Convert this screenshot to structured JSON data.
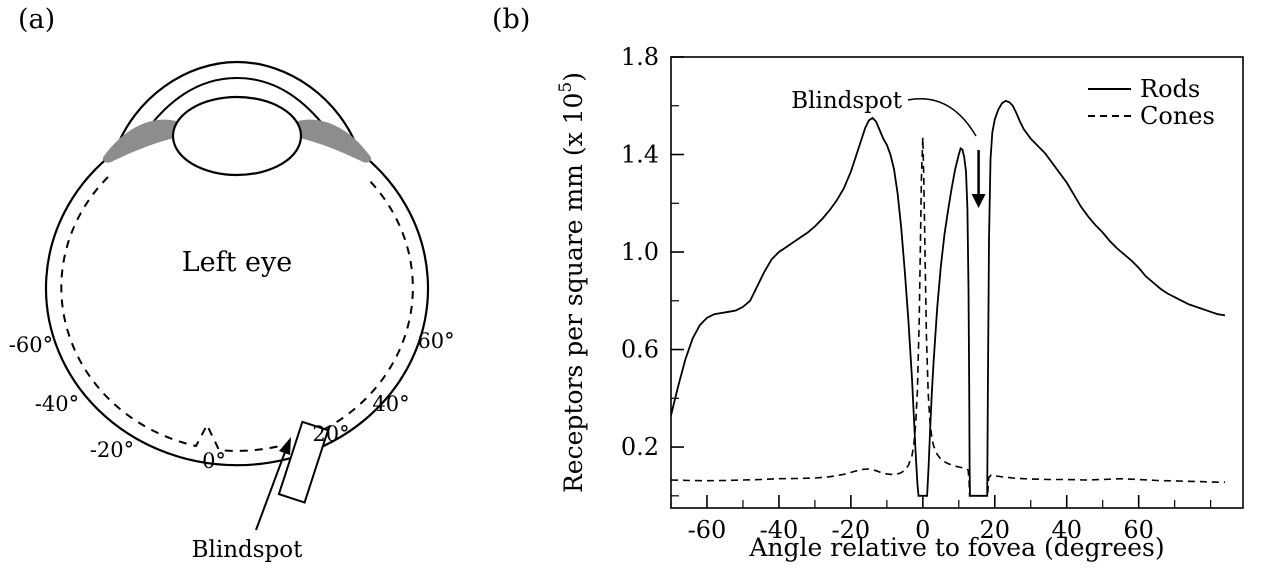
{
  "figure": {
    "panel_a": {
      "tag": "(a)",
      "eye_label": "Left eye",
      "blindspot_label": "Blindspot",
      "angle_labels": [
        "-60°",
        "-40°",
        "-20°",
        "0°",
        "20°",
        "40°",
        "60°"
      ]
    },
    "panel_b": {
      "tag": "(b)"
    }
  },
  "chart_data": {
    "type": "line",
    "title": "",
    "xlabel": "Angle relative to fovea (degrees)",
    "ylabel": "Receptors per square mm",
    "ylabel_unit": {
      "prefix": "(x 10",
      "sup": "5",
      "suffix": ")"
    },
    "xlim": [
      -70,
      89
    ],
    "ylim": [
      -0.05,
      1.8
    ],
    "grid": false,
    "legend_position": "top-right",
    "x_ticks": {
      "major": [
        -60,
        -40,
        -20,
        0,
        20,
        40,
        60
      ],
      "labels": [
        "-60",
        "-40",
        "-20",
        "0",
        "20",
        "40",
        "60"
      ],
      "minor": [
        -70,
        -50,
        -30,
        -10,
        10,
        30,
        50,
        70,
        80
      ]
    },
    "y_ticks": {
      "major": [
        0.2,
        0.6,
        1.0,
        1.4,
        1.8
      ],
      "labels": [
        "0.2",
        "0.6",
        "1.0",
        "1.4",
        "1.8"
      ],
      "minor": [
        0,
        0.4,
        0.8,
        1.2,
        1.6
      ]
    },
    "annotation": {
      "label": "Blindspot",
      "arrow_x": 15.5
    },
    "series": [
      {
        "name": "Rods",
        "style": "solid",
        "points": [
          [
            -70,
            0.33
          ],
          [
            -68,
            0.45
          ],
          [
            -66,
            0.56
          ],
          [
            -64,
            0.645
          ],
          [
            -62,
            0.7
          ],
          [
            -60,
            0.73
          ],
          [
            -58,
            0.745
          ],
          [
            -56,
            0.75
          ],
          [
            -54,
            0.755
          ],
          [
            -52,
            0.76
          ],
          [
            -50,
            0.775
          ],
          [
            -48,
            0.8
          ],
          [
            -46,
            0.86
          ],
          [
            -44,
            0.92
          ],
          [
            -42,
            0.97
          ],
          [
            -40,
            1.0
          ],
          [
            -38,
            1.02
          ],
          [
            -36,
            1.04
          ],
          [
            -34,
            1.06
          ],
          [
            -32,
            1.08
          ],
          [
            -30,
            1.105
          ],
          [
            -28,
            1.135
          ],
          [
            -26,
            1.17
          ],
          [
            -24,
            1.21
          ],
          [
            -22,
            1.26
          ],
          [
            -20,
            1.33
          ],
          [
            -18,
            1.42
          ],
          [
            -16,
            1.51
          ],
          [
            -15,
            1.54
          ],
          [
            -14,
            1.55
          ],
          [
            -13,
            1.535
          ],
          [
            -12,
            1.5
          ],
          [
            -11,
            1.465
          ],
          [
            -10,
            1.44
          ],
          [
            -9,
            1.4
          ],
          [
            -8,
            1.34
          ],
          [
            -7,
            1.24
          ],
          [
            -6,
            1.1
          ],
          [
            -5,
            0.92
          ],
          [
            -4,
            0.72
          ],
          [
            -3,
            0.48
          ],
          [
            -2.5,
            0.33
          ],
          [
            -2,
            0.18
          ],
          [
            -1.5,
            0.05
          ],
          [
            -1.2,
            0
          ],
          [
            1.2,
            0
          ],
          [
            1.6,
            0.12
          ],
          [
            2,
            0.26
          ],
          [
            2.5,
            0.42
          ],
          [
            3,
            0.55
          ],
          [
            4,
            0.77
          ],
          [
            5,
            0.94
          ],
          [
            6,
            1.07
          ],
          [
            7,
            1.17
          ],
          [
            8,
            1.26
          ],
          [
            9,
            1.34
          ],
          [
            10,
            1.4
          ],
          [
            10.5,
            1.425
          ],
          [
            11,
            1.42
          ],
          [
            11.5,
            1.39
          ],
          [
            12,
            1.33
          ],
          [
            12.4,
            1.18
          ],
          [
            12.7,
            0.85
          ],
          [
            12.9,
            0.45
          ],
          [
            13,
            0.12
          ],
          [
            13.1,
            0
          ],
          [
            17.9,
            0
          ],
          [
            18.1,
            0.45
          ],
          [
            18.4,
            1.05
          ],
          [
            18.8,
            1.38
          ],
          [
            19.3,
            1.49
          ],
          [
            20,
            1.545
          ],
          [
            21,
            1.585
          ],
          [
            22,
            1.61
          ],
          [
            23,
            1.62
          ],
          [
            24,
            1.615
          ],
          [
            25,
            1.6
          ],
          [
            26,
            1.57
          ],
          [
            27,
            1.535
          ],
          [
            28,
            1.505
          ],
          [
            30,
            1.465
          ],
          [
            32,
            1.435
          ],
          [
            34,
            1.405
          ],
          [
            36,
            1.365
          ],
          [
            38,
            1.325
          ],
          [
            40,
            1.285
          ],
          [
            42,
            1.235
          ],
          [
            44,
            1.185
          ],
          [
            46,
            1.145
          ],
          [
            48,
            1.11
          ],
          [
            50,
            1.08
          ],
          [
            52,
            1.045
          ],
          [
            54,
            1.015
          ],
          [
            56,
            0.99
          ],
          [
            58,
            0.965
          ],
          [
            60,
            0.935
          ],
          [
            62,
            0.9
          ],
          [
            64,
            0.875
          ],
          [
            66,
            0.85
          ],
          [
            68,
            0.83
          ],
          [
            70,
            0.815
          ],
          [
            72,
            0.8
          ],
          [
            74,
            0.785
          ],
          [
            76,
            0.775
          ],
          [
            78,
            0.765
          ],
          [
            80,
            0.755
          ],
          [
            82,
            0.745
          ],
          [
            84,
            0.74
          ]
        ]
      },
      {
        "name": "Cones",
        "style": "dashed",
        "points": [
          [
            -70,
            0.065
          ],
          [
            -65,
            0.063
          ],
          [
            -60,
            0.062
          ],
          [
            -55,
            0.063
          ],
          [
            -50,
            0.065
          ],
          [
            -45,
            0.067
          ],
          [
            -40,
            0.07
          ],
          [
            -35,
            0.071
          ],
          [
            -30,
            0.073
          ],
          [
            -26,
            0.078
          ],
          [
            -22,
            0.088
          ],
          [
            -19,
            0.1
          ],
          [
            -17,
            0.108
          ],
          [
            -15,
            0.11
          ],
          [
            -13,
            0.103
          ],
          [
            -11,
            0.092
          ],
          [
            -9,
            0.088
          ],
          [
            -7,
            0.09
          ],
          [
            -6,
            0.095
          ],
          [
            -5,
            0.105
          ],
          [
            -4,
            0.125
          ],
          [
            -3,
            0.165
          ],
          [
            -2.5,
            0.21
          ],
          [
            -2,
            0.29
          ],
          [
            -1.5,
            0.43
          ],
          [
            -1,
            0.72
          ],
          [
            -0.7,
            1.0
          ],
          [
            -0.4,
            1.3
          ],
          [
            0,
            1.47
          ],
          [
            0.3,
            1.28
          ],
          [
            0.6,
            1.0
          ],
          [
            1,
            0.66
          ],
          [
            1.5,
            0.42
          ],
          [
            2,
            0.3
          ],
          [
            2.5,
            0.24
          ],
          [
            3,
            0.205
          ],
          [
            4,
            0.17
          ],
          [
            5,
            0.15
          ],
          [
            6,
            0.14
          ],
          [
            7,
            0.132
          ],
          [
            8,
            0.127
          ],
          [
            9,
            0.122
          ],
          [
            10,
            0.118
          ],
          [
            11,
            0.115
          ],
          [
            12,
            0.112
          ],
          [
            12.6,
            0.105
          ],
          [
            12.9,
            0.05
          ],
          [
            13,
            0
          ],
          [
            18,
            0
          ],
          [
            18.3,
            0.075
          ],
          [
            19,
            0.085
          ],
          [
            20,
            0.082
          ],
          [
            22,
            0.078
          ],
          [
            25,
            0.073
          ],
          [
            28,
            0.07
          ],
          [
            30,
            0.069
          ],
          [
            35,
            0.067
          ],
          [
            40,
            0.067
          ],
          [
            45,
            0.065
          ],
          [
            50,
            0.067
          ],
          [
            55,
            0.07
          ],
          [
            60,
            0.067
          ],
          [
            65,
            0.063
          ],
          [
            70,
            0.061
          ],
          [
            75,
            0.059
          ],
          [
            78,
            0.058
          ],
          [
            80,
            0.057
          ],
          [
            82,
            0.056
          ],
          [
            84,
            0.056
          ]
        ]
      }
    ]
  }
}
